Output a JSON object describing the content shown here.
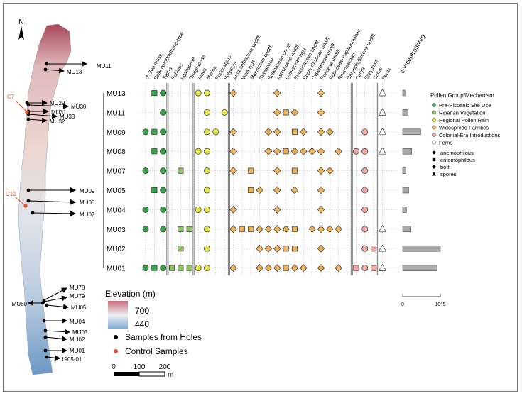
{
  "map": {
    "north_label": "N",
    "elevation_title": "Elevation (m)",
    "elevation_high": "700",
    "elevation_low": "440",
    "color_high": "#b0203a",
    "color_low": "#2f6fb0",
    "legend_holes": "Samples from Holes",
    "legend_control": "Control Samples",
    "scalebar_ticks": [
      "0",
      "100",
      "200"
    ],
    "scalebar_unit": "m",
    "control_color": "#e8532a",
    "control_samples": [
      "C7",
      "C10"
    ],
    "hole_samples": [
      "MU11",
      "MU13",
      "MU29",
      "MU30",
      "MU31",
      "MU33",
      "MU32",
      "MU09",
      "MU08",
      "MU07",
      "MU78",
      "MU79",
      "MU80",
      "MU05",
      "MU04",
      "MU03",
      "MU02",
      "MU01",
      "1905-01"
    ]
  },
  "legend": {
    "group_title": "Pollen Group/Mechanism",
    "groups": [
      {
        "label": "Pre-Hispanic Site Use",
        "color": "#3aa24a"
      },
      {
        "label": "Riparian Vegetation",
        "color": "#8dc460"
      },
      {
        "label": "Regional Pollen Rain",
        "color": "#e6e64a"
      },
      {
        "label": "Widespread Families",
        "color": "#f0b35a"
      },
      {
        "label": "Colonial-Era Introductions",
        "color": "#f0a8a0"
      },
      {
        "label": "Ferns",
        "color": "#ffffff"
      }
    ],
    "mechanisms": [
      {
        "label": "anemophilous",
        "shape": "circle"
      },
      {
        "label": "entomophilous",
        "shape": "square"
      },
      {
        "label": "both",
        "shape": "diamond"
      },
      {
        "label": "spores",
        "shape": "triangle"
      }
    ]
  },
  "chart_data": {
    "type": "scatter",
    "samples": [
      "MU13",
      "MU11",
      "MU09",
      "MU08",
      "MU07",
      "MU05",
      "MU04",
      "MU03",
      "MU02",
      "MU01"
    ],
    "taxa": [
      {
        "name": "cf. Zea mays",
        "group": 0
      },
      {
        "name": "Salix humboldtiana-type",
        "group": 0
      },
      {
        "name": "Typha",
        "group": 0
      },
      {
        "name": "Schinus",
        "group": 1
      },
      {
        "name": "Agavaceae",
        "group": 1
      },
      {
        "name": "Onagraceae",
        "group": 1
      },
      {
        "name": "Alnus",
        "group": 2
      },
      {
        "name": "Myrica",
        "group": 2
      },
      {
        "name": "Podocarpus",
        "group": 2
      },
      {
        "name": "Polylepis",
        "group": 2
      },
      {
        "name": "Amaranthaceae undiff.",
        "group": 3
      },
      {
        "name": "Vicia-type",
        "group": 3
      },
      {
        "name": "Malvaceae undiff.",
        "group": 3
      },
      {
        "name": "Rubiaceae",
        "group": 3
      },
      {
        "name": "Solanaceae undiff.",
        "group": 3
      },
      {
        "name": "Asteraceae undiff.",
        "group": 3
      },
      {
        "name": "Lamiaceae-type",
        "group": 3
      },
      {
        "name": "Brassicaceae undiff.",
        "group": 3
      },
      {
        "name": "Euphorbiaceae undiff.",
        "group": 3
      },
      {
        "name": "Cyperaceae undiff.",
        "group": 3
      },
      {
        "name": "Poaceae undiff.",
        "group": 3
      },
      {
        "name": "Fabaceae-Papilionoideae",
        "group": 3
      },
      {
        "name": "Rhamnaceae",
        "group": 3
      },
      {
        "name": "Caryophyllaceae undiff.",
        "group": 3
      },
      {
        "name": "Carya",
        "group": 4
      },
      {
        "name": "Syzygium",
        "group": 4
      },
      {
        "name": "Citrus",
        "group": 4
      },
      {
        "name": "Ferns",
        "group": 5
      }
    ],
    "dividers_after_taxa": [
      2,
      5,
      9,
      23,
      26
    ],
    "presence": {
      "MU13": [
        [
          1,
          "square"
        ],
        [
          2,
          "circle"
        ],
        [
          6,
          "circle"
        ],
        [
          7,
          "circle"
        ],
        [
          10,
          "diamond"
        ],
        [
          15,
          "diamond"
        ],
        [
          20,
          "diamond"
        ],
        [
          27,
          "triangle"
        ]
      ],
      "MU11": [
        [
          2,
          "circle"
        ],
        [
          7,
          "circle"
        ],
        [
          9,
          "circle"
        ],
        [
          15,
          "diamond"
        ],
        [
          16,
          "square"
        ],
        [
          17,
          "diamond"
        ],
        [
          20,
          "diamond"
        ],
        [
          27,
          "triangle"
        ]
      ],
      "MU09": [
        [
          0,
          "circle"
        ],
        [
          1,
          "square"
        ],
        [
          2,
          "circle"
        ],
        [
          7,
          "circle"
        ],
        [
          8,
          "circle"
        ],
        [
          10,
          "diamond"
        ],
        [
          14,
          "diamond"
        ],
        [
          15,
          "diamond"
        ],
        [
          17,
          "square"
        ],
        [
          18,
          "diamond"
        ],
        [
          20,
          "diamond"
        ],
        [
          21,
          "diamond"
        ],
        [
          25,
          "circle"
        ],
        [
          27,
          "triangle"
        ]
      ],
      "MU08": [
        [
          1,
          "square"
        ],
        [
          2,
          "circle"
        ],
        [
          6,
          "circle"
        ],
        [
          7,
          "circle"
        ],
        [
          10,
          "diamond"
        ],
        [
          14,
          "diamond"
        ],
        [
          15,
          "diamond"
        ],
        [
          16,
          "square"
        ],
        [
          17,
          "diamond"
        ],
        [
          18,
          "diamond"
        ],
        [
          19,
          "diamond"
        ],
        [
          20,
          "diamond"
        ],
        [
          22,
          "diamond"
        ],
        [
          24,
          "circle"
        ],
        [
          25,
          "circle"
        ],
        [
          27,
          "triangle"
        ]
      ],
      "MU07": [
        [
          0,
          "circle"
        ],
        [
          2,
          "circle"
        ],
        [
          4,
          "square"
        ],
        [
          7,
          "circle"
        ],
        [
          10,
          "diamond"
        ],
        [
          12,
          "square"
        ],
        [
          15,
          "diamond"
        ],
        [
          17,
          "square"
        ],
        [
          20,
          "diamond"
        ],
        [
          21,
          "diamond"
        ],
        [
          25,
          "circle"
        ]
      ],
      "MU05": [
        [
          1,
          "square"
        ],
        [
          2,
          "circle"
        ],
        [
          7,
          "circle"
        ],
        [
          12,
          "square"
        ],
        [
          13,
          "diamond"
        ],
        [
          15,
          "diamond"
        ],
        [
          17,
          "diamond"
        ],
        [
          20,
          "diamond"
        ],
        [
          25,
          "circle"
        ]
      ],
      "MU04": [
        [
          0,
          "circle"
        ],
        [
          2,
          "circle"
        ],
        [
          6,
          "circle"
        ],
        [
          7,
          "circle"
        ],
        [
          10,
          "diamond"
        ],
        [
          15,
          "diamond"
        ],
        [
          20,
          "diamond"
        ],
        [
          25,
          "circle"
        ]
      ],
      "MU03": [
        [
          0,
          "circle"
        ],
        [
          2,
          "circle"
        ],
        [
          4,
          "square"
        ],
        [
          5,
          "square"
        ],
        [
          7,
          "circle"
        ],
        [
          10,
          "diamond"
        ],
        [
          11,
          "square"
        ],
        [
          12,
          "square"
        ],
        [
          13,
          "diamond"
        ],
        [
          14,
          "diamond"
        ],
        [
          15,
          "diamond"
        ],
        [
          16,
          "diamond"
        ],
        [
          17,
          "square"
        ],
        [
          19,
          "diamond"
        ],
        [
          20,
          "diamond"
        ],
        [
          21,
          "diamond"
        ],
        [
          22,
          "diamond"
        ],
        [
          25,
          "circle"
        ],
        [
          27,
          "triangle"
        ]
      ],
      "MU02": [
        [
          4,
          "square"
        ],
        [
          7,
          "circle"
        ],
        [
          13,
          "diamond"
        ],
        [
          14,
          "diamond"
        ],
        [
          15,
          "diamond"
        ],
        [
          16,
          "square"
        ],
        [
          17,
          "square"
        ],
        [
          20,
          "diamond"
        ],
        [
          25,
          "circle"
        ],
        [
          26,
          "square"
        ],
        [
          27,
          "triangle"
        ]
      ],
      "MU01": [
        [
          0,
          "circle"
        ],
        [
          1,
          "square"
        ],
        [
          2,
          "circle"
        ],
        [
          3,
          "square"
        ],
        [
          4,
          "square"
        ],
        [
          5,
          "square"
        ],
        [
          6,
          "circle"
        ],
        [
          7,
          "circle"
        ],
        [
          10,
          "diamond"
        ],
        [
          13,
          "diamond"
        ],
        [
          14,
          "diamond"
        ],
        [
          15,
          "diamond"
        ],
        [
          16,
          "square"
        ],
        [
          17,
          "diamond"
        ],
        [
          18,
          "diamond"
        ],
        [
          20,
          "diamond"
        ],
        [
          22,
          "diamond"
        ],
        [
          24,
          "square"
        ],
        [
          25,
          "circle"
        ],
        [
          26,
          "square"
        ],
        [
          27,
          "triangle"
        ]
      ]
    },
    "concentration": {
      "title": "concentration/g",
      "axis_ticks": [
        "0",
        "10^5"
      ],
      "xlim": [
        0,
        100000
      ],
      "values": {
        "MU13": 6000,
        "MU11": 14000,
        "MU09": 48000,
        "MU08": 24000,
        "MU07": 8000,
        "MU05": 16000,
        "MU04": 10000,
        "MU03": 22000,
        "MU02": 100000,
        "MU01": 92000
      },
      "bar_color": "#a9a9a9"
    }
  }
}
